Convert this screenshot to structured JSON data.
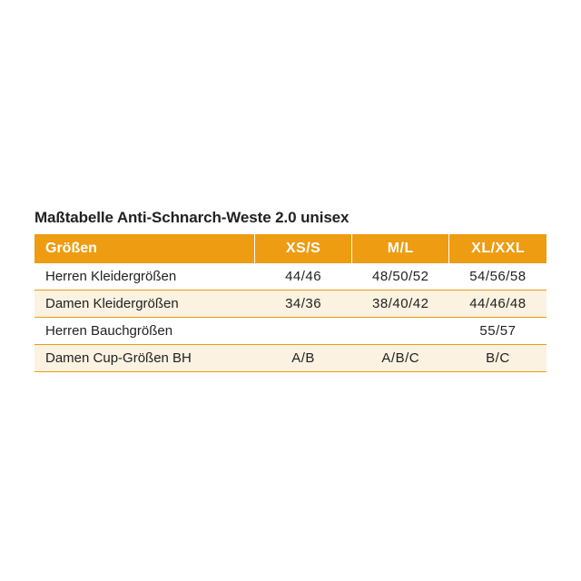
{
  "title": "Maßtabelle Anti-Schnarch-Weste 2.0 unisex",
  "header": {
    "label": "Größen",
    "cols": [
      "XS/S",
      "M/L",
      "XL/XXL"
    ]
  },
  "rows": [
    {
      "label": "Herren Kleidergrößen",
      "cells": [
        "44/46",
        "48/50/52",
        "54/56/58"
      ]
    },
    {
      "label": "Damen Kleidergrößen",
      "cells": [
        "34/36",
        "38/40/42",
        "44/46/48"
      ]
    },
    {
      "label": "Herren Bauchgrößen",
      "cells": [
        "",
        "",
        "55/57"
      ]
    },
    {
      "label": "Damen Cup-Größen BH",
      "cells": [
        "A/B",
        "A/B/C",
        "B/C"
      ]
    }
  ],
  "style": {
    "header_bg": "#ee9c12",
    "header_text": "#ffffff",
    "row_bg_even": "#ffffff",
    "row_bg_odd": "#fbf2e1",
    "row_border": "#ee9c12",
    "text_color": "#222222",
    "title_color": "#212121",
    "title_fontsize": 17,
    "header_fontsize": 16,
    "cell_fontsize": 15,
    "col_widths_pct": [
      43,
      19,
      19,
      19
    ]
  }
}
